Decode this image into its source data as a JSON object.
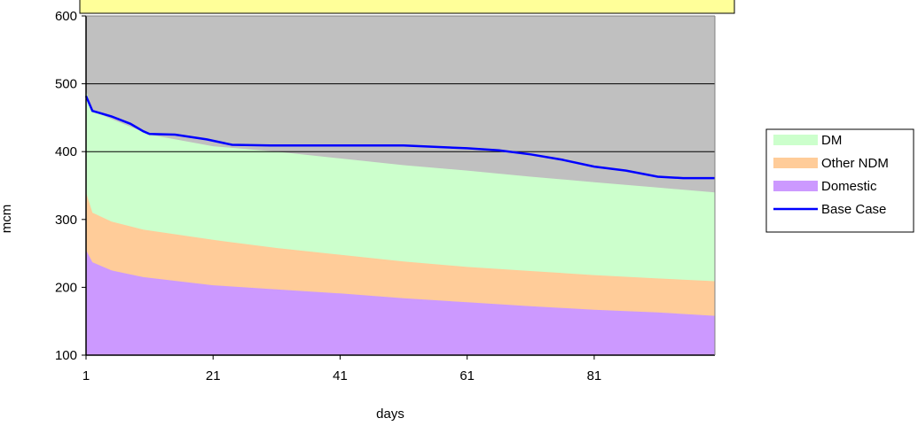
{
  "chart_data": {
    "type": "area",
    "title": "",
    "xlabel": "days",
    "ylabel": "mcm",
    "xlim": [
      1,
      100
    ],
    "ylim": [
      100,
      600
    ],
    "x_ticks": [
      "1",
      "21",
      "41",
      "61",
      "81"
    ],
    "y_ticks": [
      "100",
      "200",
      "300",
      "400",
      "500",
      "600"
    ],
    "gridlines_y": [
      400,
      500
    ],
    "plot_background": "#c0c0c0",
    "legend_position": "right",
    "series": [
      {
        "name": "Domestic",
        "kind": "area",
        "color": "#cc99ff",
        "points": [
          [
            1,
            255
          ],
          [
            2,
            237
          ],
          [
            5,
            225
          ],
          [
            10,
            215
          ],
          [
            21,
            203
          ],
          [
            31,
            197
          ],
          [
            41,
            191
          ],
          [
            51,
            184
          ],
          [
            61,
            178
          ],
          [
            71,
            172
          ],
          [
            81,
            167
          ],
          [
            91,
            163
          ],
          [
            100,
            158
          ]
        ]
      },
      {
        "name": "Other NDM",
        "kind": "area",
        "color": "#ffcc99",
        "points": [
          [
            1,
            340
          ],
          [
            2,
            310
          ],
          [
            5,
            297
          ],
          [
            10,
            285
          ],
          [
            21,
            270
          ],
          [
            31,
            258
          ],
          [
            41,
            248
          ],
          [
            51,
            238
          ],
          [
            61,
            230
          ],
          [
            71,
            224
          ],
          [
            81,
            218
          ],
          [
            91,
            213
          ],
          [
            100,
            209
          ]
        ]
      },
      {
        "name": "DM",
        "kind": "area",
        "color": "#ccffcc",
        "points": [
          [
            1,
            490
          ],
          [
            2,
            460
          ],
          [
            5,
            448
          ],
          [
            9,
            433
          ],
          [
            11,
            425
          ],
          [
            21,
            408
          ],
          [
            31,
            400
          ],
          [
            41,
            390
          ],
          [
            51,
            380
          ],
          [
            61,
            372
          ],
          [
            71,
            363
          ],
          [
            81,
            355
          ],
          [
            91,
            347
          ],
          [
            100,
            340
          ]
        ]
      },
      {
        "name": "Base Case",
        "kind": "line",
        "color": "#0000ff",
        "points": [
          [
            1,
            482
          ],
          [
            2,
            460
          ],
          [
            5,
            452
          ],
          [
            8,
            441
          ],
          [
            10,
            430
          ],
          [
            11,
            426
          ],
          [
            15,
            425
          ],
          [
            20,
            418
          ],
          [
            24,
            410
          ],
          [
            30,
            409
          ],
          [
            41,
            409
          ],
          [
            51,
            409
          ],
          [
            61,
            405
          ],
          [
            66,
            402
          ],
          [
            71,
            396
          ],
          [
            76,
            388
          ],
          [
            81,
            378
          ],
          [
            86,
            372
          ],
          [
            91,
            363
          ],
          [
            95,
            361
          ],
          [
            100,
            361
          ]
        ]
      }
    ]
  }
}
